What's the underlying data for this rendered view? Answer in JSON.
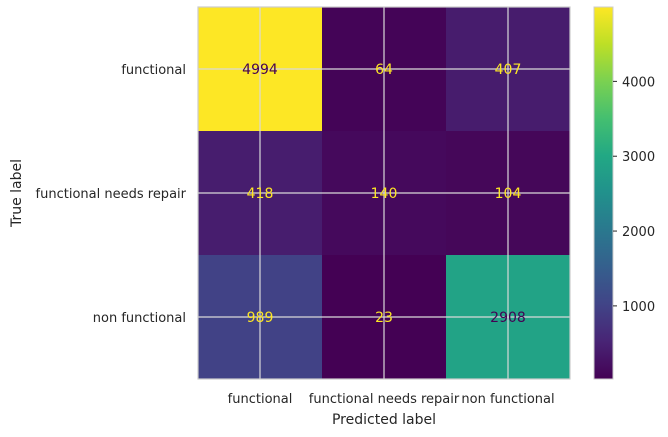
{
  "chart_data": {
    "type": "heatmap",
    "title": "",
    "xlabel": "Predicted label",
    "ylabel": "True label",
    "x_categories": [
      "functional",
      "functional needs repair",
      "non functional"
    ],
    "y_categories": [
      "functional",
      "functional needs repair",
      "non functional"
    ],
    "matrix": [
      [
        4994,
        64,
        407
      ],
      [
        418,
        140,
        104
      ],
      [
        989,
        23,
        2908
      ]
    ],
    "colorbar": {
      "colormap": "viridis",
      "vmin": 23,
      "vmax": 4994,
      "ticks": [
        1000,
        2000,
        3000,
        4000
      ]
    },
    "grid": true
  },
  "colors": {
    "grid": "#d9d9d9",
    "frame": "#cccccc",
    "text": "#262626",
    "label_on_dark": "#fde725",
    "label_on_light": "#440154"
  }
}
